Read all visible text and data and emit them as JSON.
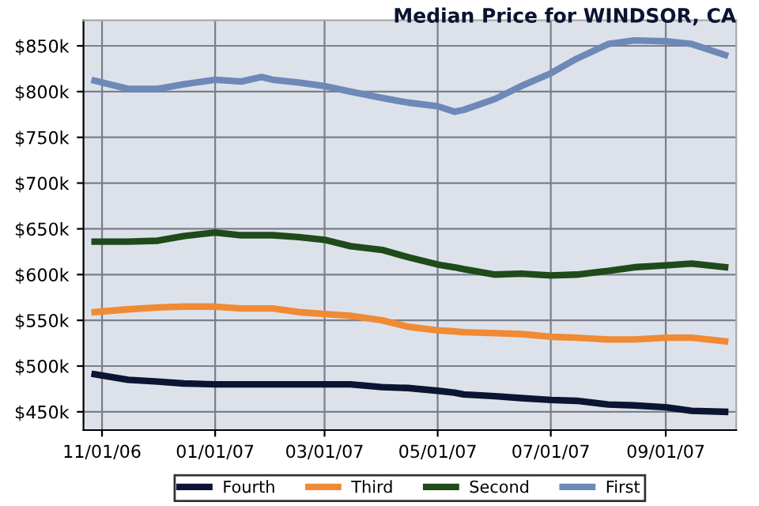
{
  "chart_data": {
    "type": "line",
    "title": "Median Price for WINDSOR, CA",
    "x": [
      "2006-10-28",
      "2006-11-15",
      "2006-12-01",
      "2006-12-15",
      "2007-01-01",
      "2007-01-15",
      "2007-01-26",
      "2007-02-01",
      "2007-02-15",
      "2007-03-01",
      "2007-03-15",
      "2007-04-01",
      "2007-04-15",
      "2007-05-01",
      "2007-05-10",
      "2007-05-15",
      "2007-06-01",
      "2007-06-15",
      "2007-07-01",
      "2007-07-15",
      "2007-08-01",
      "2007-08-15",
      "2007-09-01",
      "2007-09-15",
      "2007-10-03"
    ],
    "series": [
      {
        "name": "Fourth",
        "color": "#0b1433",
        "values": [
          491,
          485,
          483,
          481,
          480,
          480,
          480,
          480,
          480,
          480,
          480,
          477,
          476,
          473,
          471,
          469,
          467,
          465,
          463,
          462,
          458,
          457,
          455,
          451,
          450
        ]
      },
      {
        "name": "Third",
        "color": "#f08a35",
        "values": [
          559,
          562,
          564,
          565,
          565,
          563,
          563,
          563,
          559,
          557,
          555,
          550,
          543,
          539,
          538,
          537,
          536,
          535,
          532,
          531,
          529,
          529,
          531,
          531,
          527
        ]
      },
      {
        "name": "Second",
        "color": "#1f4a1a",
        "values": [
          636,
          636,
          637,
          642,
          646,
          643,
          643,
          643,
          641,
          638,
          631,
          627,
          619,
          611,
          608,
          606,
          600,
          601,
          599,
          600,
          604,
          608,
          610,
          612,
          608
        ]
      },
      {
        "name": "First",
        "color": "#6e88b8",
        "values": [
          812,
          803,
          803,
          808,
          813,
          811,
          816,
          813,
          810,
          806,
          800,
          793,
          788,
          784,
          778,
          780,
          792,
          806,
          820,
          836,
          852,
          856,
          855,
          852,
          840
        ]
      }
    ],
    "xlim": [
      "2006-10-22",
      "2007-10-09"
    ],
    "xticks": [
      {
        "value": "2006-11-01",
        "label": "11/01/06"
      },
      {
        "value": "2007-01-01",
        "label": "01/01/07"
      },
      {
        "value": "2007-03-01",
        "label": "03/01/07"
      },
      {
        "value": "2007-05-01",
        "label": "05/01/07"
      },
      {
        "value": "2007-07-01",
        "label": "07/01/07"
      },
      {
        "value": "2007-09-01",
        "label": "09/01/07"
      }
    ],
    "ylim": [
      430,
      878
    ],
    "yticks": [
      {
        "value": 450,
        "label": "$450k"
      },
      {
        "value": 500,
        "label": "$500k"
      },
      {
        "value": 550,
        "label": "$550k"
      },
      {
        "value": 600,
        "label": "$600k"
      },
      {
        "value": 650,
        "label": "$650k"
      },
      {
        "value": 700,
        "label": "$700k"
      },
      {
        "value": 750,
        "label": "$750k"
      },
      {
        "value": 800,
        "label": "$800k"
      },
      {
        "value": 850,
        "label": "$850k"
      }
    ],
    "grid": true,
    "legend": "bottom",
    "marker": "none",
    "line_style": "solid"
  }
}
